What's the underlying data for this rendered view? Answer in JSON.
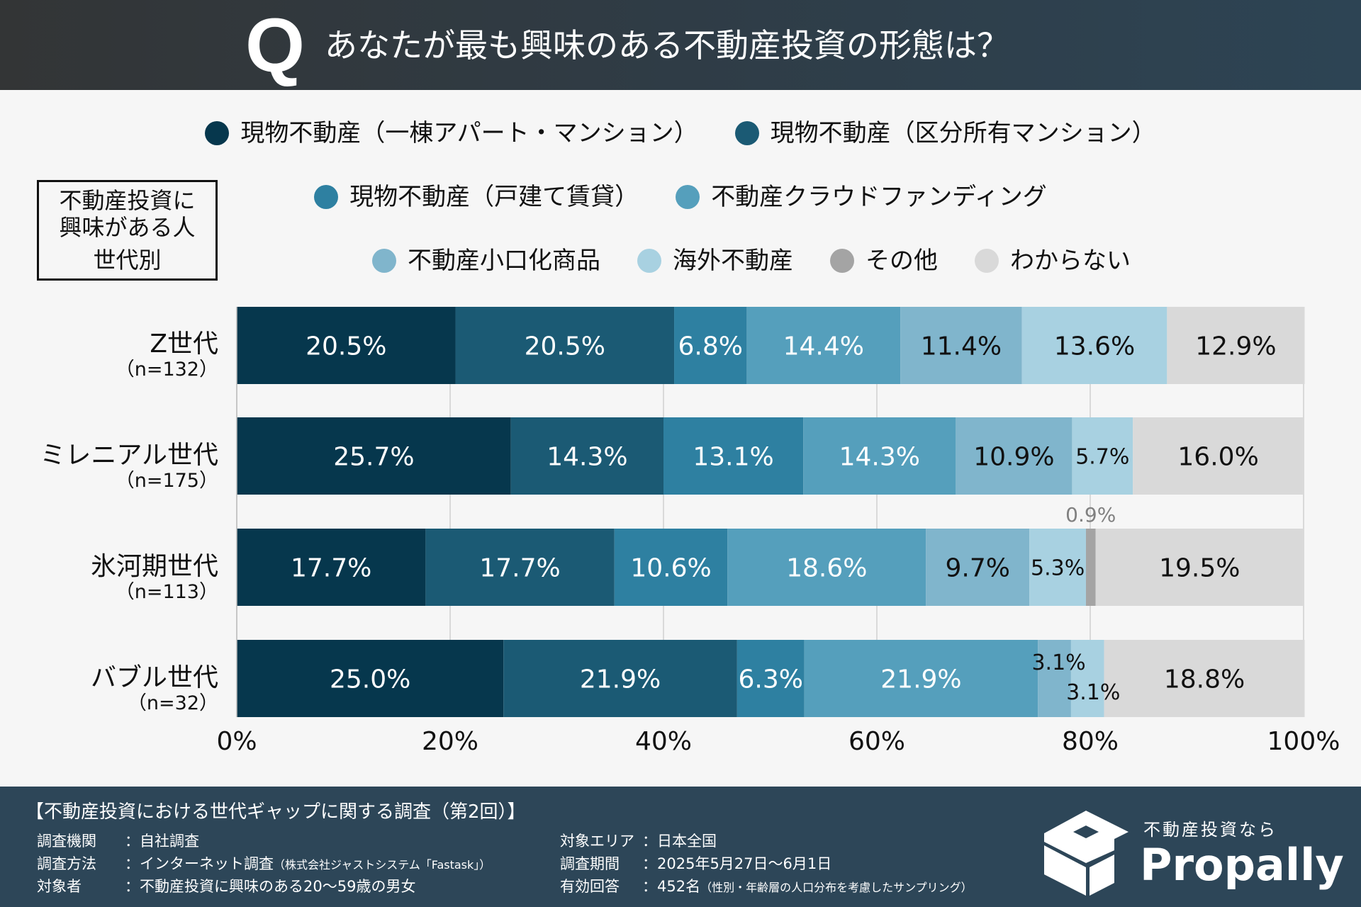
{
  "header": {
    "q_mark": "Q",
    "title": "あなたが最も興味のある不動産投資の形態は？"
  },
  "group_box": {
    "line1": "不動産投資に",
    "line2": "興味がある人",
    "line3": "世代別"
  },
  "chart_data": {
    "type": "bar",
    "orientation": "horizontal",
    "stacked": true,
    "title": "あなたが最も興味のある不動産投資の形態は？",
    "xlim": [
      0,
      100
    ],
    "grid": true,
    "legend_position": "top",
    "x_ticks": [
      "0%",
      "20%",
      "40%",
      "60%",
      "80%",
      "100%"
    ],
    "categories": [
      {
        "name": "Z世代",
        "n": "（n=132）"
      },
      {
        "name": "ミレニアル世代",
        "n": "（n=175）"
      },
      {
        "name": "氷河期世代",
        "n": "（n=113）"
      },
      {
        "name": "バブル世代",
        "n": "（n=32）"
      }
    ],
    "series": [
      {
        "name": "現物不動産（一棟アパート・マンション）",
        "color": "#06374d",
        "label_color": "#ffffff",
        "values": [
          20.5,
          25.7,
          17.7,
          25.0
        ]
      },
      {
        "name": "現物不動産（区分所有マンション）",
        "color": "#1b5a74",
        "label_color": "#ffffff",
        "values": [
          20.5,
          14.3,
          17.7,
          21.9
        ]
      },
      {
        "name": "現物不動産（戸建て賃貸）",
        "color": "#2e80a1",
        "label_color": "#ffffff",
        "values": [
          6.8,
          13.1,
          10.6,
          6.3
        ]
      },
      {
        "name": "不動産クラウドファンディング",
        "color": "#559fbc",
        "label_color": "#ffffff",
        "values": [
          14.4,
          14.3,
          18.6,
          21.9
        ]
      },
      {
        "name": "不動産小口化商品",
        "color": "#80b5cc",
        "label_color": "#111111",
        "values": [
          11.4,
          10.9,
          9.7,
          3.1
        ]
      },
      {
        "name": "海外不動産",
        "color": "#a8d1e1",
        "label_color": "#111111",
        "values": [
          13.6,
          5.7,
          5.3,
          3.1
        ]
      },
      {
        "name": "その他",
        "color": "#a4a4a4",
        "label_color": "#808080",
        "values": [
          0,
          0,
          0.9,
          0
        ]
      },
      {
        "name": "わからない",
        "color": "#d9d9d9",
        "label_color": "#111111",
        "values": [
          12.9,
          16.0,
          19.5,
          18.8
        ]
      }
    ],
    "data_labels": [
      [
        "20.5%",
        "20.5%",
        "6.8%",
        "14.4%",
        "11.4%",
        "13.6%",
        "",
        "12.9%"
      ],
      [
        "25.7%",
        "14.3%",
        "13.1%",
        "14.3%",
        "10.9%",
        "5.7%",
        "",
        "16.0%"
      ],
      [
        "17.7%",
        "17.7%",
        "10.6%",
        "18.6%",
        "9.7%",
        "5.3%",
        "0.9%",
        "19.5%"
      ],
      [
        "25.0%",
        "21.9%",
        "6.3%",
        "21.9%",
        "3.1%",
        "3.1%",
        "",
        "18.8%"
      ]
    ]
  },
  "footer": {
    "title": "【不動産投資における世代ギャップに関する調査（第2回）】",
    "left": [
      {
        "key": "調査機関",
        "value": "：自社調査",
        "note": ""
      },
      {
        "key": "調査方法",
        "value": "：インターネット調査",
        "note": "（株式会社ジャストシステム「Fastask」）"
      },
      {
        "key": "対象者",
        "value": "：不動産投資に興味のある20〜59歳の男女",
        "note": ""
      }
    ],
    "right": [
      {
        "key": "対象エリア",
        "value": "：日本全国",
        "note": ""
      },
      {
        "key": "調査期間",
        "value": "：2025年5月27日〜6月1日",
        "note": ""
      },
      {
        "key": "有効回答",
        "value": "：452名",
        "note": "（性別・年齢層の人口分布を考慮したサンプリング）"
      }
    ]
  },
  "logo": {
    "tagline": "不動産投資なら",
    "brand": "Propally"
  }
}
